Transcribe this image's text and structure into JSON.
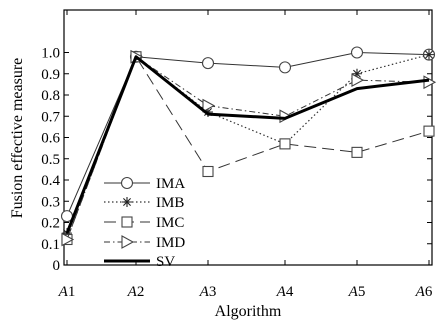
{
  "chart_data": {
    "type": "line",
    "xlabel": "Algorithm",
    "ylabel": "Fusion effective measure",
    "categories": [
      {
        "italic": "A",
        "num": "1"
      },
      {
        "italic": "A",
        "num": "2"
      },
      {
        "italic": "A",
        "num": "3"
      },
      {
        "italic": "A",
        "num": "4"
      },
      {
        "italic": "A",
        "num": "5"
      },
      {
        "italic": "A",
        "num": "6"
      }
    ],
    "yticks": [
      "0",
      "0.1",
      "0.2",
      "0.3",
      "0.4",
      "0.5",
      "0.6",
      "0.7",
      "0.8",
      "0.9",
      "1.0"
    ],
    "ylim": [
      0,
      1.2
    ],
    "grid": false,
    "legend_position": "left",
    "series": [
      {
        "name": "IMA",
        "values": [
          0.23,
          0.98,
          0.95,
          0.93,
          1.0,
          0.99
        ],
        "line": "solid-thin",
        "marker": "circle"
      },
      {
        "name": "IMB",
        "values": [
          0.15,
          0.98,
          0.72,
          0.57,
          0.9,
          0.99
        ],
        "line": "dotted",
        "marker": "star"
      },
      {
        "name": "IMC",
        "values": [
          0.12,
          0.98,
          0.44,
          0.57,
          0.53,
          0.63
        ],
        "line": "dashed",
        "marker": "square"
      },
      {
        "name": "IMD",
        "values": [
          0.12,
          0.98,
          0.75,
          0.7,
          0.87,
          0.86
        ],
        "line": "dashdot",
        "marker": "triangle-right"
      },
      {
        "name": "SV",
        "values": [
          0.15,
          0.98,
          0.71,
          0.69,
          0.83,
          0.87
        ],
        "line": "solid-thick",
        "marker": "none"
      }
    ]
  }
}
